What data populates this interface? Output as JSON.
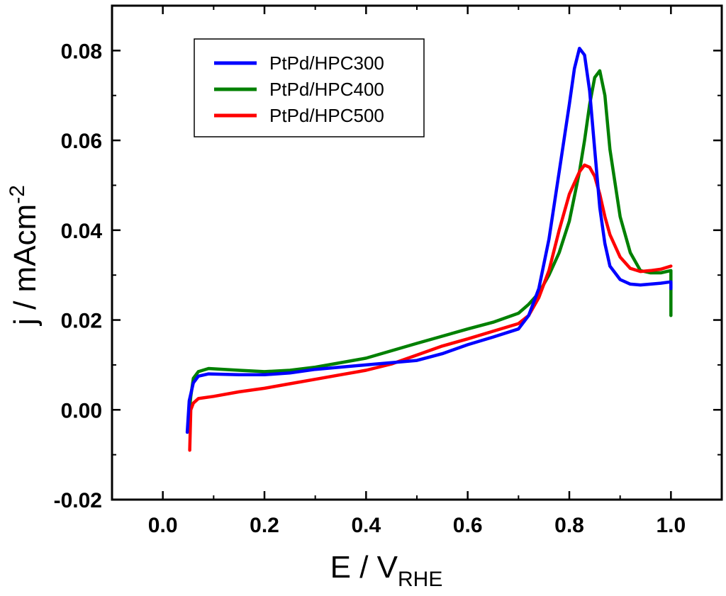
{
  "chart_data": {
    "type": "line",
    "title": "",
    "xlabel": {
      "main": "E / V",
      "sub": "RHE"
    },
    "ylabel": {
      "main": "j / mAcm",
      "sup": "-2"
    },
    "xlim": [
      -0.1,
      1.1
    ],
    "ylim": [
      -0.02,
      0.09
    ],
    "xticks": [
      0.0,
      0.2,
      0.4,
      0.6,
      0.8,
      1.0
    ],
    "xtick_labels": [
      "0.0",
      "0.2",
      "0.4",
      "0.6",
      "0.8",
      "1.0"
    ],
    "yticks": [
      -0.02,
      0.0,
      0.02,
      0.04,
      0.06,
      0.08
    ],
    "ytick_labels": [
      "-0.02",
      "0.00",
      "0.02",
      "0.04",
      "0.06",
      "0.08"
    ],
    "grid": false,
    "legend": "top-left",
    "series": [
      {
        "name": "PtPd/HPC300",
        "color": "#0000ff",
        "x": [
          0.048,
          0.052,
          0.06,
          0.07,
          0.09,
          0.15,
          0.2,
          0.25,
          0.3,
          0.4,
          0.5,
          0.55,
          0.6,
          0.65,
          0.7,
          0.72,
          0.74,
          0.76,
          0.78,
          0.8,
          0.81,
          0.82,
          0.83,
          0.84,
          0.85,
          0.86,
          0.87,
          0.88,
          0.9,
          0.92,
          0.94,
          0.96,
          0.98,
          1.0,
          1.0
        ],
        "y": [
          -0.005,
          0.002,
          0.006,
          0.0075,
          0.008,
          0.0078,
          0.0078,
          0.0082,
          0.009,
          0.01,
          0.011,
          0.0125,
          0.0145,
          0.0162,
          0.018,
          0.021,
          0.027,
          0.038,
          0.053,
          0.068,
          0.076,
          0.0805,
          0.079,
          0.071,
          0.058,
          0.045,
          0.037,
          0.032,
          0.029,
          0.028,
          0.0278,
          0.028,
          0.0282,
          0.0285,
          0.027
        ]
      },
      {
        "name": "PtPd/HPC400",
        "color": "#008000",
        "x": [
          0.05,
          0.055,
          0.06,
          0.07,
          0.09,
          0.15,
          0.2,
          0.25,
          0.3,
          0.4,
          0.5,
          0.6,
          0.65,
          0.7,
          0.72,
          0.74,
          0.76,
          0.78,
          0.8,
          0.82,
          0.83,
          0.84,
          0.85,
          0.86,
          0.87,
          0.88,
          0.9,
          0.92,
          0.94,
          0.96,
          0.98,
          1.0,
          1.0
        ],
        "y": [
          -0.003,
          0.003,
          0.007,
          0.0085,
          0.0092,
          0.0088,
          0.0085,
          0.0088,
          0.0095,
          0.0115,
          0.0148,
          0.018,
          0.0195,
          0.0215,
          0.0235,
          0.026,
          0.03,
          0.035,
          0.042,
          0.053,
          0.06,
          0.068,
          0.074,
          0.0755,
          0.07,
          0.058,
          0.043,
          0.035,
          0.031,
          0.0305,
          0.0305,
          0.031,
          0.021
        ]
      },
      {
        "name": "PtPd/HPC500",
        "color": "#ff0000",
        "x": [
          0.053,
          0.055,
          0.06,
          0.07,
          0.1,
          0.15,
          0.2,
          0.25,
          0.3,
          0.35,
          0.4,
          0.45,
          0.5,
          0.55,
          0.6,
          0.65,
          0.7,
          0.72,
          0.74,
          0.76,
          0.78,
          0.8,
          0.82,
          0.83,
          0.84,
          0.85,
          0.86,
          0.87,
          0.88,
          0.9,
          0.92,
          0.94,
          0.96,
          0.98,
          1.0
        ],
        "y": [
          -0.009,
          0.0,
          0.0015,
          0.0025,
          0.003,
          0.004,
          0.0048,
          0.0058,
          0.0068,
          0.0078,
          0.0088,
          0.0102,
          0.0122,
          0.0142,
          0.0158,
          0.0175,
          0.0192,
          0.021,
          0.025,
          0.031,
          0.04,
          0.048,
          0.053,
          0.0545,
          0.054,
          0.052,
          0.048,
          0.043,
          0.039,
          0.034,
          0.0315,
          0.0308,
          0.031,
          0.0313,
          0.032
        ]
      }
    ]
  }
}
